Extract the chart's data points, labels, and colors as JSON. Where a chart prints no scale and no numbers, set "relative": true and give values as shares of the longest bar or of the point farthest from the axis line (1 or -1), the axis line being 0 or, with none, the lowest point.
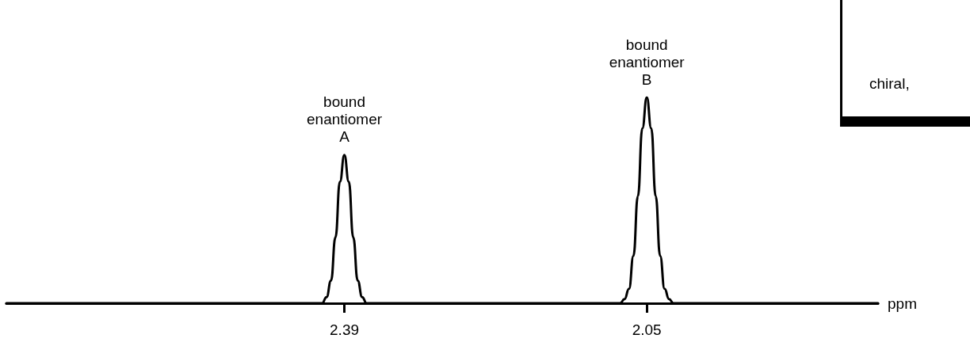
{
  "chart_data": {
    "type": "line",
    "relative": true,
    "xlabel": "ppm",
    "xlim": [
      2.77,
      1.79
    ],
    "xticks": [
      2.39,
      2.05
    ],
    "grid": false,
    "marker": "none",
    "line_style": "solid",
    "series": [
      {
        "color": "#000000",
        "x": [
          2.77,
          2.415,
          2.41,
          2.405,
          2.4,
          2.395,
          2.39,
          2.385,
          2.38,
          2.375,
          2.37,
          2.365,
          2.08,
          2.075,
          2.07,
          2.065,
          2.06,
          2.055,
          2.05,
          2.045,
          2.04,
          2.035,
          2.03,
          2.025,
          2.02,
          1.79
        ],
        "values": [
          0,
          0,
          0.03,
          0.11,
          0.32,
          0.59,
          0.72,
          0.59,
          0.32,
          0.11,
          0.03,
          0,
          0,
          0.02,
          0.07,
          0.23,
          0.52,
          0.85,
          1,
          0.85,
          0.52,
          0.23,
          0.07,
          0.02,
          0,
          0
        ]
      }
    ],
    "annotations": [
      {
        "text": "bound\nenantiomer\nA",
        "x": 2.39,
        "y": 0.72
      },
      {
        "text": "bound\nenantiomer\nB",
        "x": 2.05,
        "y": 1
      },
      "chiral,"
    ]
  }
}
